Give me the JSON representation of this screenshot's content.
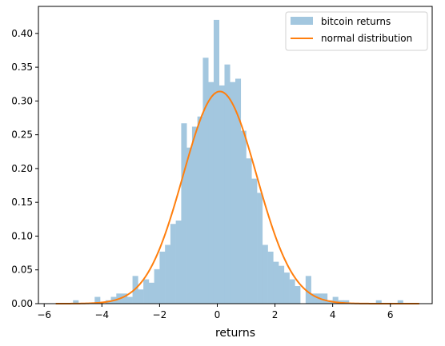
{
  "chart_data": {
    "type": "bar",
    "xlabel": "returns",
    "ylabel": "",
    "xlim": [
      -6.2,
      7.45
    ],
    "ylim": [
      0,
      0.44
    ],
    "x_ticks": [
      -6,
      -4,
      -2,
      0,
      2,
      4,
      6
    ],
    "x_tick_labels": [
      "−6",
      "−4",
      "−2",
      "0",
      "2",
      "4",
      "6"
    ],
    "y_ticks": [
      0.0,
      0.05,
      0.1,
      0.15,
      0.2,
      0.25,
      0.3,
      0.35,
      0.4
    ],
    "y_tick_labels": [
      "0.00",
      "0.05",
      "0.10",
      "0.15",
      "0.20",
      "0.25",
      "0.30",
      "0.35",
      "0.40"
    ],
    "grid": false,
    "legend_position": "top-right",
    "series": [
      {
        "name": "bitcoin returns",
        "kind": "histogram",
        "color": "#a3c7df",
        "bin_width": 0.1875,
        "bins": [
          {
            "x0": -5.0,
            "value": 0.005
          },
          {
            "x0": -4.25,
            "value": 0.01
          },
          {
            "x0": -3.875,
            "value": 0.005
          },
          {
            "x0": -3.688,
            "value": 0.01
          },
          {
            "x0": -3.5,
            "value": 0.015
          },
          {
            "x0": -3.312,
            "value": 0.015
          },
          {
            "x0": -3.125,
            "value": 0.01
          },
          {
            "x0": -2.938,
            "value": 0.041
          },
          {
            "x0": -2.75,
            "value": 0.021
          },
          {
            "x0": -2.562,
            "value": 0.036
          },
          {
            "x0": -2.375,
            "value": 0.031
          },
          {
            "x0": -2.188,
            "value": 0.051
          },
          {
            "x0": -2.0,
            "value": 0.077
          },
          {
            "x0": -1.812,
            "value": 0.087
          },
          {
            "x0": -1.625,
            "value": 0.118
          },
          {
            "x0": -1.438,
            "value": 0.123
          },
          {
            "x0": -1.25,
            "value": 0.267
          },
          {
            "x0": -1.062,
            "value": 0.231
          },
          {
            "x0": -0.875,
            "value": 0.262
          },
          {
            "x0": -0.688,
            "value": 0.277
          },
          {
            "x0": -0.5,
            "value": 0.364
          },
          {
            "x0": -0.312,
            "value": 0.328
          },
          {
            "x0": -0.125,
            "value": 0.42
          },
          {
            "x0": 0.062,
            "value": 0.323
          },
          {
            "x0": 0.25,
            "value": 0.354
          },
          {
            "x0": 0.438,
            "value": 0.328
          },
          {
            "x0": 0.625,
            "value": 0.333
          },
          {
            "x0": 0.812,
            "value": 0.256
          },
          {
            "x0": 1.0,
            "value": 0.215
          },
          {
            "x0": 1.188,
            "value": 0.185
          },
          {
            "x0": 1.375,
            "value": 0.164
          },
          {
            "x0": 1.562,
            "value": 0.087
          },
          {
            "x0": 1.75,
            "value": 0.077
          },
          {
            "x0": 1.938,
            "value": 0.062
          },
          {
            "x0": 2.125,
            "value": 0.056
          },
          {
            "x0": 2.312,
            "value": 0.046
          },
          {
            "x0": 2.5,
            "value": 0.036
          },
          {
            "x0": 2.688,
            "value": 0.026
          },
          {
            "x0": 3.062,
            "value": 0.041
          },
          {
            "x0": 3.25,
            "value": 0.015
          },
          {
            "x0": 3.438,
            "value": 0.015
          },
          {
            "x0": 3.625,
            "value": 0.015
          },
          {
            "x0": 3.812,
            "value": 0.005
          },
          {
            "x0": 4.0,
            "value": 0.01
          },
          {
            "x0": 4.188,
            "value": 0.005
          },
          {
            "x0": 4.375,
            "value": 0.005
          },
          {
            "x0": 5.5,
            "value": 0.005
          },
          {
            "x0": 6.25,
            "value": 0.005
          }
        ]
      },
      {
        "name": "normal distribution",
        "kind": "line",
        "color": "#ff7f0e",
        "mean": 0.09,
        "std": 1.27,
        "x_range": [
          -5.6,
          7.0
        ]
      }
    ]
  }
}
